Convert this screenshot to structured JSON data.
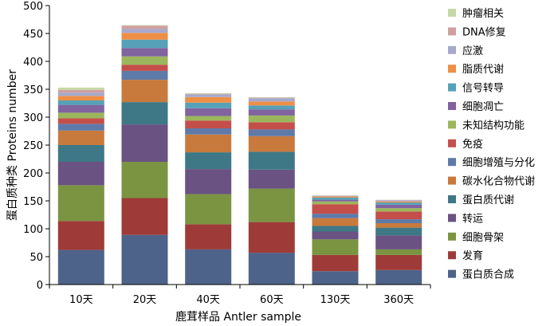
{
  "chart_data": {
    "type": "bar",
    "stacked": true,
    "xlabel": "鹿茸样品 Antler sample",
    "ylabel": "蛋白质种类 Proteins number",
    "ylim": [
      0,
      500
    ],
    "yticks": [
      0,
      50,
      100,
      150,
      200,
      250,
      300,
      350,
      400,
      450,
      500
    ],
    "categories": [
      "10天",
      "20天",
      "40天",
      "60天",
      "130天",
      "360天"
    ],
    "legend_position": "right",
    "series": [
      {
        "name": "蛋白质合成",
        "color": "#4e6389",
        "values": [
          62,
          89,
          63,
          57,
          24,
          26
        ]
      },
      {
        "name": "发育",
        "color": "#9e3b38",
        "values": [
          52,
          66,
          45,
          55,
          29,
          27
        ]
      },
      {
        "name": "细胞骨架",
        "color": "#7a9442",
        "values": [
          64,
          65,
          54,
          60,
          28,
          10
        ]
      },
      {
        "name": "转运",
        "color": "#6a5283",
        "values": [
          42,
          67,
          45,
          34,
          14,
          25
        ]
      },
      {
        "name": "蛋白质代谢",
        "color": "#3e7886",
        "values": [
          30,
          40,
          30,
          32,
          10,
          14
        ]
      },
      {
        "name": "碳水化合物代谢",
        "color": "#c87a3c",
        "values": [
          26,
          40,
          32,
          28,
          14,
          8
        ]
      },
      {
        "name": "细胞增殖与分化",
        "color": "#5e7aa8",
        "values": [
          12,
          16,
          11,
          12,
          8,
          7
        ]
      },
      {
        "name": "免疫",
        "color": "#c44f4a",
        "values": [
          10,
          11,
          14,
          13,
          17,
          14
        ]
      },
      {
        "name": "未知结构功能",
        "color": "#9bb65c",
        "values": [
          10,
          15,
          8,
          12,
          5,
          6
        ]
      },
      {
        "name": "细胞凋亡",
        "color": "#80639f",
        "values": [
          14,
          15,
          14,
          11,
          3,
          6
        ]
      },
      {
        "name": "信号转导",
        "color": "#56a1b8",
        "values": [
          8,
          15,
          10,
          7,
          4,
          4
        ]
      },
      {
        "name": "脂质代谢",
        "color": "#ee8f45",
        "values": [
          8,
          12,
          10,
          7,
          2,
          2
        ]
      },
      {
        "name": "应激",
        "color": "#a6a9cc",
        "values": [
          6,
          7,
          5,
          6,
          1,
          2
        ]
      },
      {
        "name": "DNA修复",
        "color": "#cfa0a0",
        "values": [
          5,
          6,
          1,
          1,
          0.5,
          0.5
        ]
      },
      {
        "name": "肿瘤相关",
        "color": "#c4d9a5",
        "values": [
          4,
          1,
          1,
          0.5,
          0.5,
          0.5
        ]
      }
    ]
  }
}
